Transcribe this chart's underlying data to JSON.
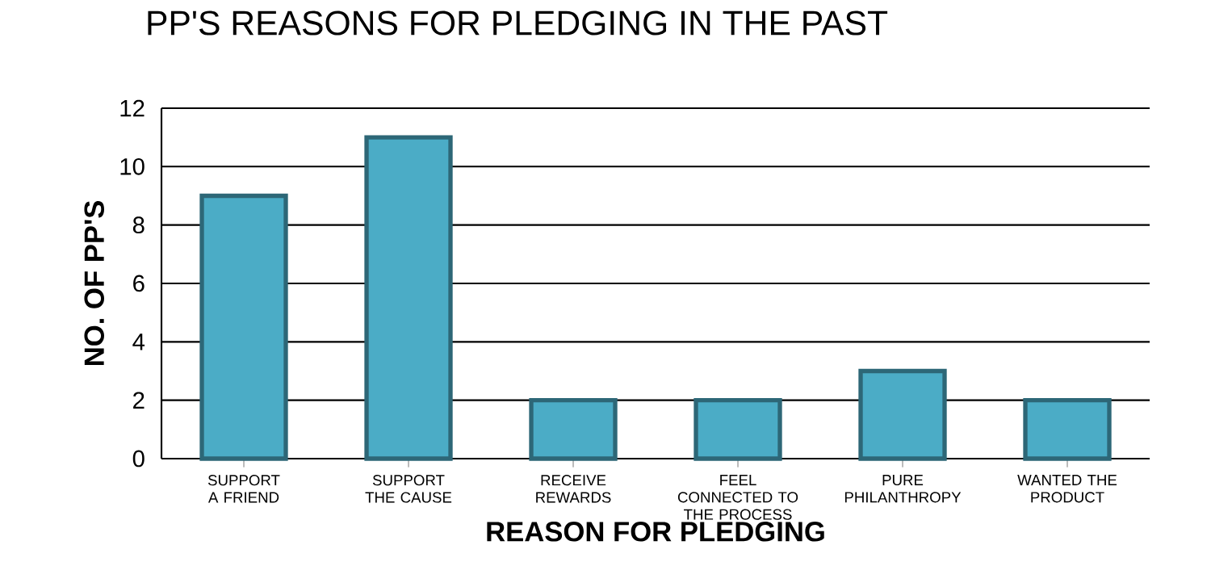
{
  "chart_data": {
    "type": "bar",
    "title": "PP'S REASONS FOR PLEDGING IN THE PAST",
    "xlabel": "REASON FOR PLEDGING",
    "ylabel": "NO. OF PP'S",
    "categories": [
      "SUPPORT A FRIEND",
      "SUPPORT THE CAUSE",
      "RECEIVE REWARDS",
      "FEEL CONNECTED TO THE PROCESS",
      "PURE PHILANTHROPY",
      "WANTED THE PRODUCT"
    ],
    "values": [
      9,
      11,
      2,
      2,
      3,
      2
    ],
    "color": "#4bacc6",
    "ylim": [
      0,
      12
    ],
    "yticks": [
      0,
      2,
      4,
      6,
      8,
      10,
      12
    ],
    "grid": "y"
  }
}
